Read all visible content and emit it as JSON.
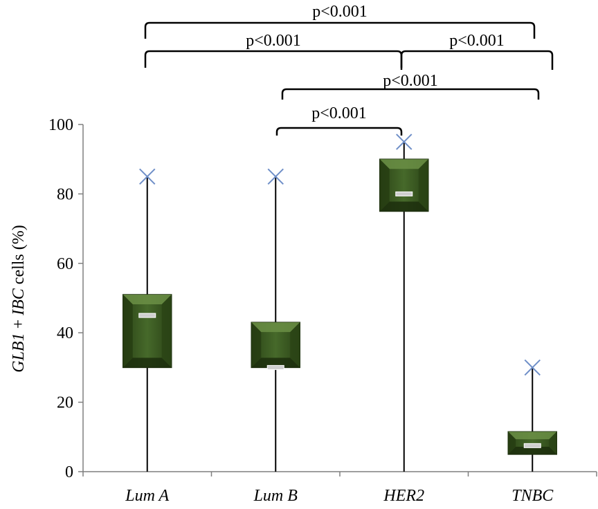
{
  "chart_data": {
    "type": "boxplot",
    "categories": [
      "Lum A",
      "Lum B",
      "HER2",
      "TNBC"
    ],
    "ylabel_parts": [
      {
        "text": "GLB1",
        "italic": true
      },
      {
        "text": " + ",
        "italic": false
      },
      {
        "text": "IBC",
        "italic": true
      },
      {
        "text": " cells (%)",
        "italic": false
      }
    ],
    "ylim": [
      0,
      100
    ],
    "yticks": [
      "0",
      "20",
      "40",
      "60",
      "80",
      "100"
    ],
    "box_color": "#3f5f23",
    "max_marker_color": "#6f8fc8",
    "boxes": [
      {
        "category": "Lum A",
        "min": 0,
        "q1": 30,
        "median": 45,
        "q3": 51,
        "max": 85
      },
      {
        "category": "Lum B",
        "min": 0,
        "q1": 30,
        "median": 30,
        "q3": 43,
        "max": 85
      },
      {
        "category": "HER2",
        "min": 0,
        "q1": 75,
        "median": 80,
        "q3": 90,
        "max": 95
      },
      {
        "category": "TNBC",
        "min": 0,
        "q1": 5,
        "median": 7.5,
        "q3": 11.5,
        "max": 30
      }
    ],
    "comparisons": [
      {
        "from": "Lum A",
        "to": "TNBC",
        "label": "p<0.001"
      },
      {
        "from": "Lum A",
        "to": "HER2",
        "label": "p<0.001"
      },
      {
        "from": "HER2",
        "to": "TNBC",
        "label": "p<0.001"
      },
      {
        "from": "Lum B",
        "to": "TNBC",
        "label": "p<0.001"
      },
      {
        "from": "Lum B",
        "to": "HER2",
        "label": "p<0.001"
      }
    ]
  }
}
